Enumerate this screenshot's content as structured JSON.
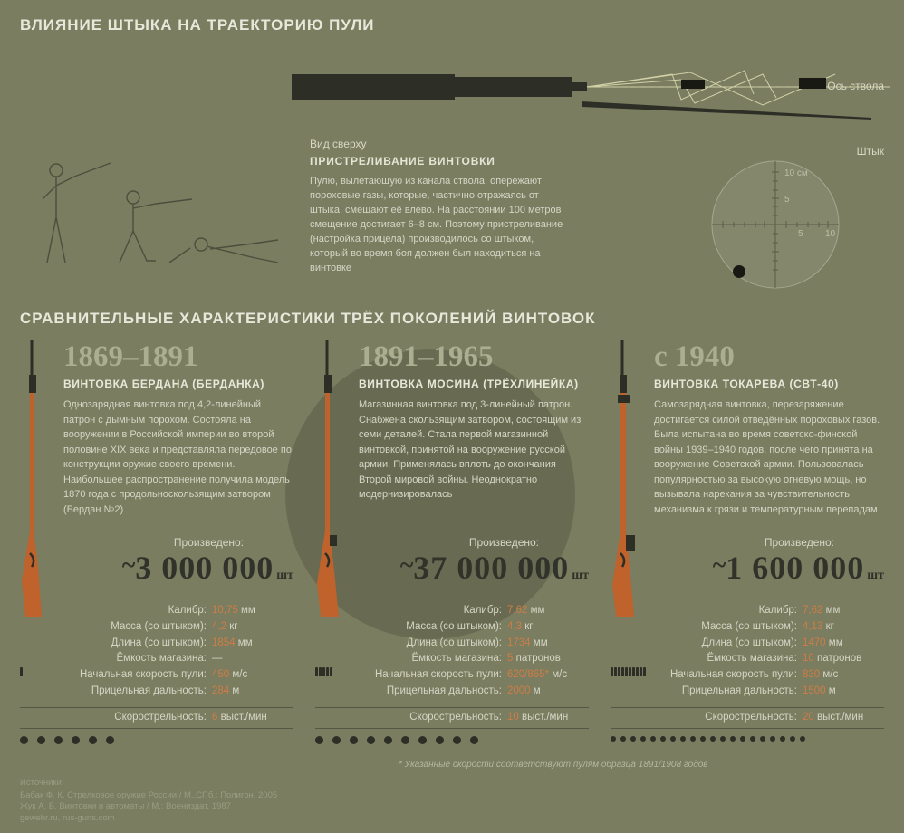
{
  "colors": {
    "background": "#7a7d60",
    "text_light": "#dcdcca",
    "text_mid": "#d5d5c5",
    "dark": "#31332a",
    "accent_orange": "#ce7d45",
    "faded_heading": "#acae92",
    "rifle_wood": "#c0622b",
    "rifle_metal": "#2d2f26"
  },
  "section1": {
    "title": "ВЛИЯНИЕ ШТЫКА НА ТРАЕКТОРИЮ ПУЛИ",
    "axis_label": "Ось ствола",
    "bayonet_label": "Штык",
    "top_view_label": "Вид сверху",
    "subhead": "ПРИСТРЕЛИВАНИЕ ВИНТОВКИ",
    "body": "Пулю, вылетающую из канала ствола, опережают пороховые газы, которые, частично отражаясь от штыка, смещают её влево. На расстоянии 100 метров смещение достигает 6–8 см. Поэтому пристреливание (настройка прицела) производилось со штыком, который во время боя должен был находиться на винтовке",
    "reticle": {
      "scale_top": "10 см",
      "xticks": [
        5,
        10
      ]
    }
  },
  "section2": {
    "title": "СРАВНИТЕЛЬНЫЕ ХАРАКТЕРИСТИКИ ТРЁХ ПОКОЛЕНИЙ ВИНТОВОК",
    "produced_label": "Произведено:",
    "produced_unit": "шт",
    "spec_labels": {
      "caliber": "Калибр:",
      "mass": "Масса (со штыком):",
      "length": "Длина (со штыком):",
      "mag": "Ёмкость магазина:",
      "mv": "Начальная скорость пули:",
      "range": "Прицельная дальность:",
      "rof": "Скорострельность:"
    },
    "units": {
      "mm": "мм",
      "kg": "кг",
      "rounds": "патронов",
      "mps": "м/с",
      "m": "м",
      "rof": "выст./мин"
    },
    "rifles": [
      {
        "years": "1869–1891",
        "name": "ВИНТОВКА БЕРДАНА (БЕРДАНКА)",
        "desc": "Однозарядная винтовка под 4,2-линейный патрон с дымным порохом. Состояла на вооружении в Российской империи во второй половине XIX века и представляла передовое по конструкции оружие своего времени. Наибольшее распространение получила модель 1870 года с продольноскользящим затвором (Бердан №2)",
        "produced": "3 000 000",
        "caliber": "10,75",
        "mass": "4,2",
        "length": "1854",
        "mag": "—",
        "mv": "450",
        "range": "284",
        "rof": "6",
        "ammo_icons": 1,
        "dots": 6
      },
      {
        "years": "1891–1965",
        "name": "ВИНТОВКА МОСИНА (ТРЁХЛИНЕЙКА)",
        "desc": "Магазинная винтовка под 3-линейный патрон. Снабжена скользящим затвором, состоящим из семи деталей. Стала первой магазинной винтовкой, принятой на вооружение русской армии. Применялась вплоть до окончания Второй мировой войны. Неоднократно модернизировалась",
        "produced": "37 000 000",
        "caliber": "7,62",
        "mass": "4,3",
        "length": "1734",
        "mag": "5",
        "mv": "620/865*",
        "range": "2000",
        "rof": "10",
        "ammo_icons": 5,
        "dots": 10
      },
      {
        "years": "с 1940",
        "name": "ВИНТОВКА ТОКАРЕВА (СВТ-40)",
        "desc": "Самозарядная винтовка, перезаряжение достигается силой отведённых пороховых газов. Была испытана во время советско-финской войны 1939–1940 годов, после чего принята на вооружение Советской армии. Пользовалась популярностью за высокую огневую мощь, но вызывала нарекания за чувствительность механизма к грязи и температурным перепадам",
        "produced": "1 600 000",
        "caliber": "7,62",
        "mass": "4,13",
        "length": "1470",
        "mag": "10",
        "mv": "830",
        "range": "1500",
        "rof": "20",
        "ammo_icons": 10,
        "dots": 20
      }
    ],
    "footnote": "* Указанные скорости соответствуют пулям образца 1891/1908 годов"
  },
  "sources": {
    "heading": "Источники:",
    "lines": [
      "Бабак Ф. К. Стрелковое оружие России / М.,СПб.: Полигон, 2005",
      "Жук А. Б. Винтовки и автоматы / М.: Воениздат, 1987",
      "gewehr.ru, rus-guns.com"
    ]
  }
}
